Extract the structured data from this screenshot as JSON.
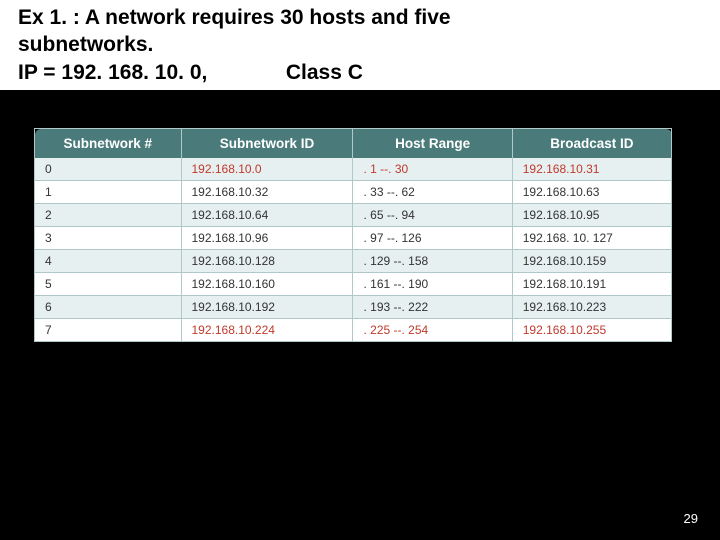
{
  "slide": {
    "title_line1": "Ex 1. : A network requires 30 hosts and five",
    "title_line2": "subnetworks.",
    "title_line3_a": "IP = 192. 168. 10. 0,",
    "title_line3_b": "Class C",
    "page_number": "29"
  },
  "table": {
    "type": "table",
    "header_bg": "#4A7A7A",
    "header_fg": "#ffffff",
    "alt_row_bg": "#E6F0F0",
    "row_bg": "#ffffff",
    "border_color": "#B0C8C8",
    "highlight_color": "#C0392B",
    "text_color": "#333333",
    "header_fontsize": 13.5,
    "cell_fontsize": 12,
    "columns": [
      "Subnetwork #",
      "Subnetwork ID",
      "Host Range",
      "Broadcast ID"
    ],
    "column_widths_pct": [
      23,
      27,
      25,
      25
    ],
    "rows": [
      {
        "num": "0",
        "id": "192.168.10.0",
        "range": ". 1 --. 30",
        "bcast": "192.168.10.31",
        "highlight": true,
        "alt": true
      },
      {
        "num": "1",
        "id": "192.168.10.32",
        "range": ". 33 --. 62",
        "bcast": "192.168.10.63",
        "highlight": false,
        "alt": false
      },
      {
        "num": "2",
        "id": "192.168.10.64",
        "range": ". 65 --. 94",
        "bcast": "192.168.10.95",
        "highlight": false,
        "alt": true
      },
      {
        "num": "3",
        "id": "192.168.10.96",
        "range": ". 97 --. 126",
        "bcast": "192.168. 10. 127",
        "highlight": false,
        "alt": false
      },
      {
        "num": "4",
        "id": "192.168.10.128",
        "range": ". 129 --. 158",
        "bcast": "192.168.10.159",
        "highlight": false,
        "alt": true
      },
      {
        "num": "5",
        "id": "192.168.10.160",
        "range": ". 161 --. 190",
        "bcast": "192.168.10.191",
        "highlight": false,
        "alt": false
      },
      {
        "num": "6",
        "id": "192.168.10.192",
        "range": ". 193 --. 222",
        "bcast": "192.168.10.223",
        "highlight": false,
        "alt": true
      },
      {
        "num": "7",
        "id": "192.168.10.224",
        "range": ". 225 --. 254",
        "bcast": "192.168.10.255",
        "highlight": true,
        "alt": false
      }
    ]
  }
}
